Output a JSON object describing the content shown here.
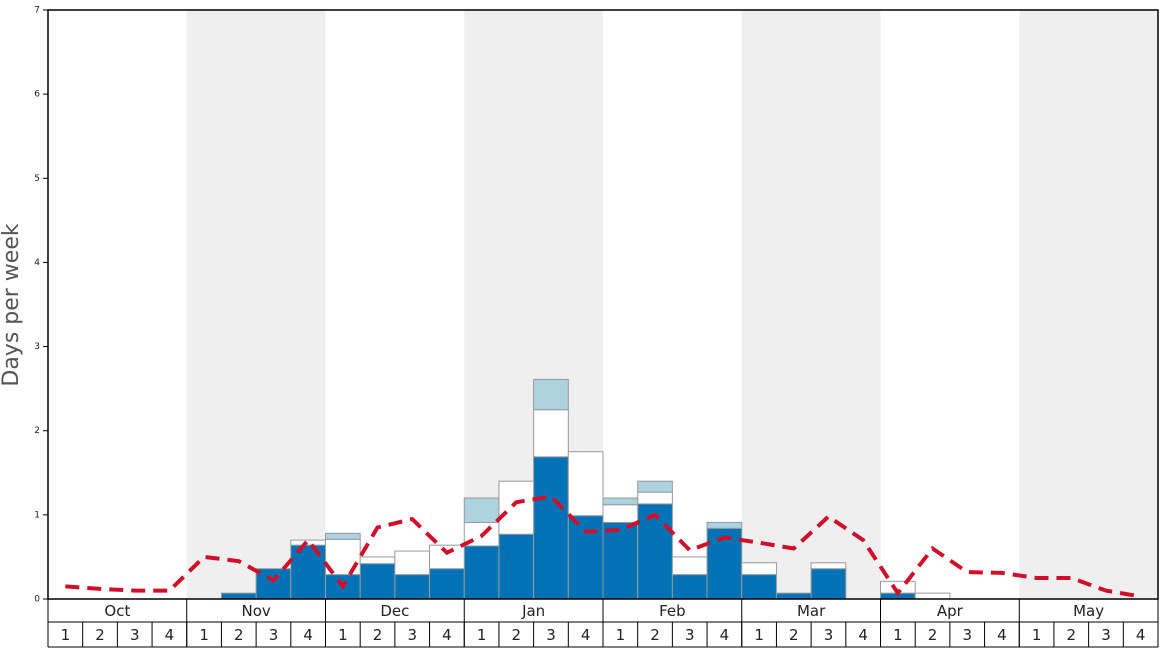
{
  "chart_data": {
    "type": "stacked_bar_line",
    "y_label": "Days per week",
    "months": [
      "Oct",
      "Nov",
      "Dec",
      "Jan",
      "Feb",
      "Mar",
      "Apr",
      "May"
    ],
    "categories": [
      "1",
      "2",
      "3",
      "4",
      "1",
      "2",
      "3",
      "4",
      "1",
      "2",
      "3",
      "4",
      "1",
      "2",
      "3",
      "4",
      "1",
      "2",
      "3",
      "4",
      "1",
      "2",
      "3",
      "4",
      "1",
      "2",
      "3",
      "4",
      "1",
      "2",
      "3",
      "4"
    ],
    "ylim": [
      0,
      7
    ],
    "yticks": [
      0,
      1,
      2,
      3,
      4,
      5,
      6,
      7
    ],
    "series": [
      {
        "color": "#0072b5",
        "values": [
          0,
          0,
          0,
          0,
          0,
          0.07,
          0.36,
          0.64,
          0.29,
          0.42,
          0.29,
          0.36,
          0.63,
          0.77,
          1.69,
          0.99,
          0.91,
          1.13,
          0.29,
          0.84,
          0.29,
          0.07,
          0.36,
          0,
          0.07,
          0,
          0,
          0,
          0,
          0,
          0,
          0
        ]
      },
      {
        "color": "#ffffff",
        "values": [
          0,
          0,
          0,
          0,
          0,
          0,
          0,
          0.06,
          0.42,
          0.08,
          0.28,
          0.28,
          0.28,
          0.63,
          0.56,
          0.76,
          0.21,
          0.14,
          0.21,
          0,
          0.14,
          0,
          0.07,
          0,
          0.14,
          0.07,
          0,
          0,
          0,
          0,
          0,
          0
        ]
      },
      {
        "color": "#add3e0",
        "values": [
          0,
          0,
          0,
          0,
          0,
          0,
          0,
          0,
          0.07,
          0,
          0,
          0,
          0.29,
          0,
          0.36,
          0,
          0.08,
          0.13,
          0,
          0.07,
          0,
          0,
          0,
          0,
          0,
          0,
          0,
          0,
          0,
          0,
          0,
          0
        ]
      }
    ],
    "line": {
      "color": "#d0102a",
      "values": [
        0.15,
        0.12,
        0.1,
        0.1,
        0.5,
        0.45,
        0.22,
        0.7,
        0.15,
        0.85,
        0.95,
        0.55,
        0.75,
        1.15,
        1.22,
        0.8,
        0.82,
        1.0,
        0.58,
        0.73,
        0.67,
        0.6,
        0.98,
        0.7,
        0.07,
        0.6,
        0.32,
        0.31,
        0.25,
        0.25,
        0.1,
        0.03
      ]
    }
  }
}
